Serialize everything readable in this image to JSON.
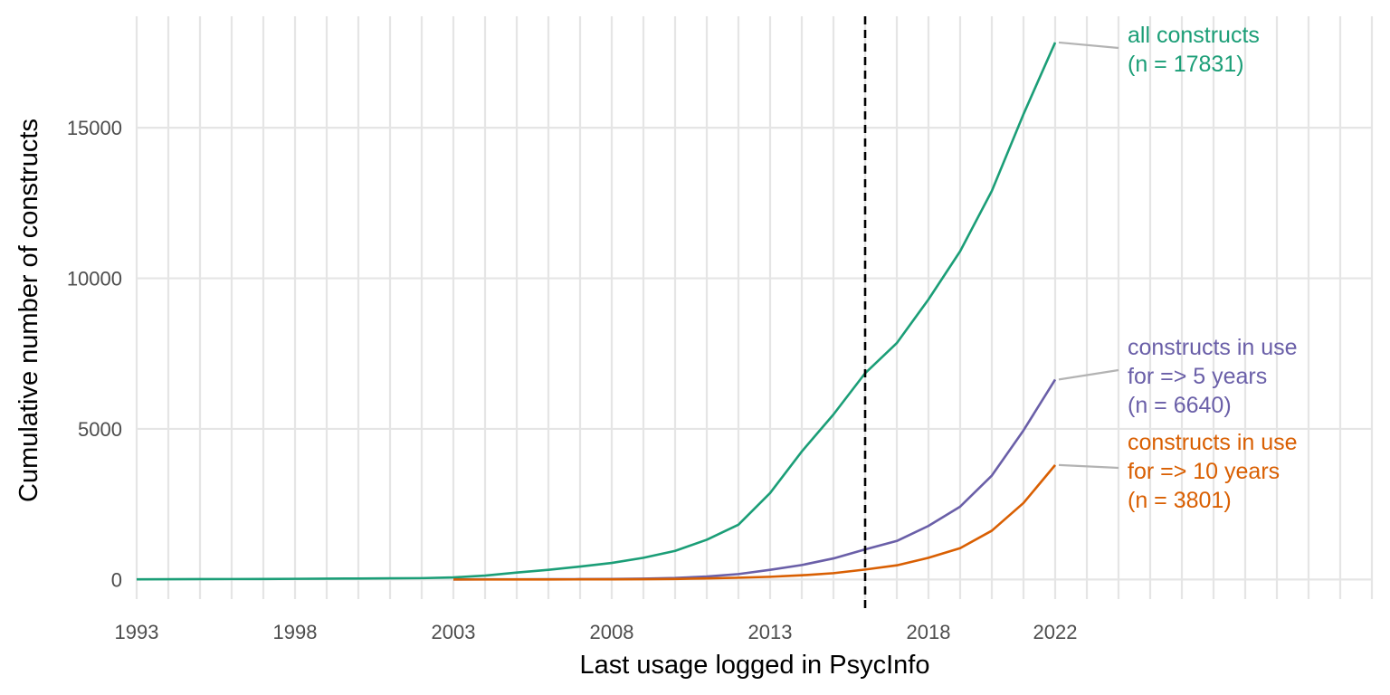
{
  "chart_data": {
    "type": "line",
    "xlabel": "Last usage logged in PsycInfo",
    "ylabel": "Cumulative number of constructs",
    "xlim": [
      1993,
      2032
    ],
    "ylim": [
      -650,
      18700
    ],
    "x_ticks": [
      1993,
      1998,
      2003,
      2008,
      2013,
      2018,
      2022
    ],
    "y_ticks": [
      0,
      5000,
      10000,
      15000
    ],
    "minor_x_gridlines": "every year",
    "vline": {
      "x": 2016,
      "style": "dashed",
      "color": "#000000"
    },
    "series": [
      {
        "key": "all",
        "color": "#1B9E77",
        "label_lines": [
          "all constructs",
          "(n = 17831)"
        ],
        "x": [
          1993,
          1994,
          1995,
          1996,
          1997,
          1998,
          1999,
          2000,
          2001,
          2002,
          2003,
          2004,
          2005,
          2006,
          2007,
          2008,
          2009,
          2010,
          2011,
          2012,
          2013,
          2014,
          2015,
          2016,
          2017,
          2018,
          2019,
          2020,
          2021,
          2022
        ],
        "y": [
          5,
          8,
          12,
          15,
          18,
          22,
          28,
          32,
          38,
          45,
          70,
          130,
          230,
          320,
          430,
          550,
          720,
          950,
          1320,
          1820,
          2870,
          4250,
          5480,
          6850,
          7850,
          9300,
          10900,
          12900,
          15450,
          17831
        ]
      },
      {
        "key": "five_years",
        "color": "#6A5FA8",
        "label_lines": [
          "constructs in use",
          "for => 5 years",
          "(n = 6640)"
        ],
        "x": [
          2003,
          2004,
          2005,
          2006,
          2007,
          2008,
          2009,
          2010,
          2011,
          2012,
          2013,
          2014,
          2015,
          2016,
          2017,
          2018,
          2019,
          2020,
          2021,
          2022
        ],
        "y": [
          2,
          4,
          6,
          8,
          12,
          18,
          28,
          50,
          100,
          180,
          320,
          480,
          700,
          1000,
          1280,
          1780,
          2420,
          3450,
          4950,
          6640
        ]
      },
      {
        "key": "ten_years",
        "color": "#D95F02",
        "label_lines": [
          "constructs in use",
          "for => 10 years",
          "(n = 3801)"
        ],
        "x": [
          2003,
          2004,
          2005,
          2006,
          2007,
          2008,
          2009,
          2010,
          2011,
          2012,
          2013,
          2014,
          2015,
          2016,
          2017,
          2018,
          2019,
          2020,
          2021,
          2022
        ],
        "y": [
          0,
          0,
          1,
          2,
          4,
          6,
          10,
          18,
          35,
          60,
          90,
          140,
          210,
          330,
          470,
          720,
          1040,
          1620,
          2540,
          3801
        ]
      }
    ],
    "leader_line_color": "#B3B3B3",
    "grid_color": "#E5E5E5"
  }
}
